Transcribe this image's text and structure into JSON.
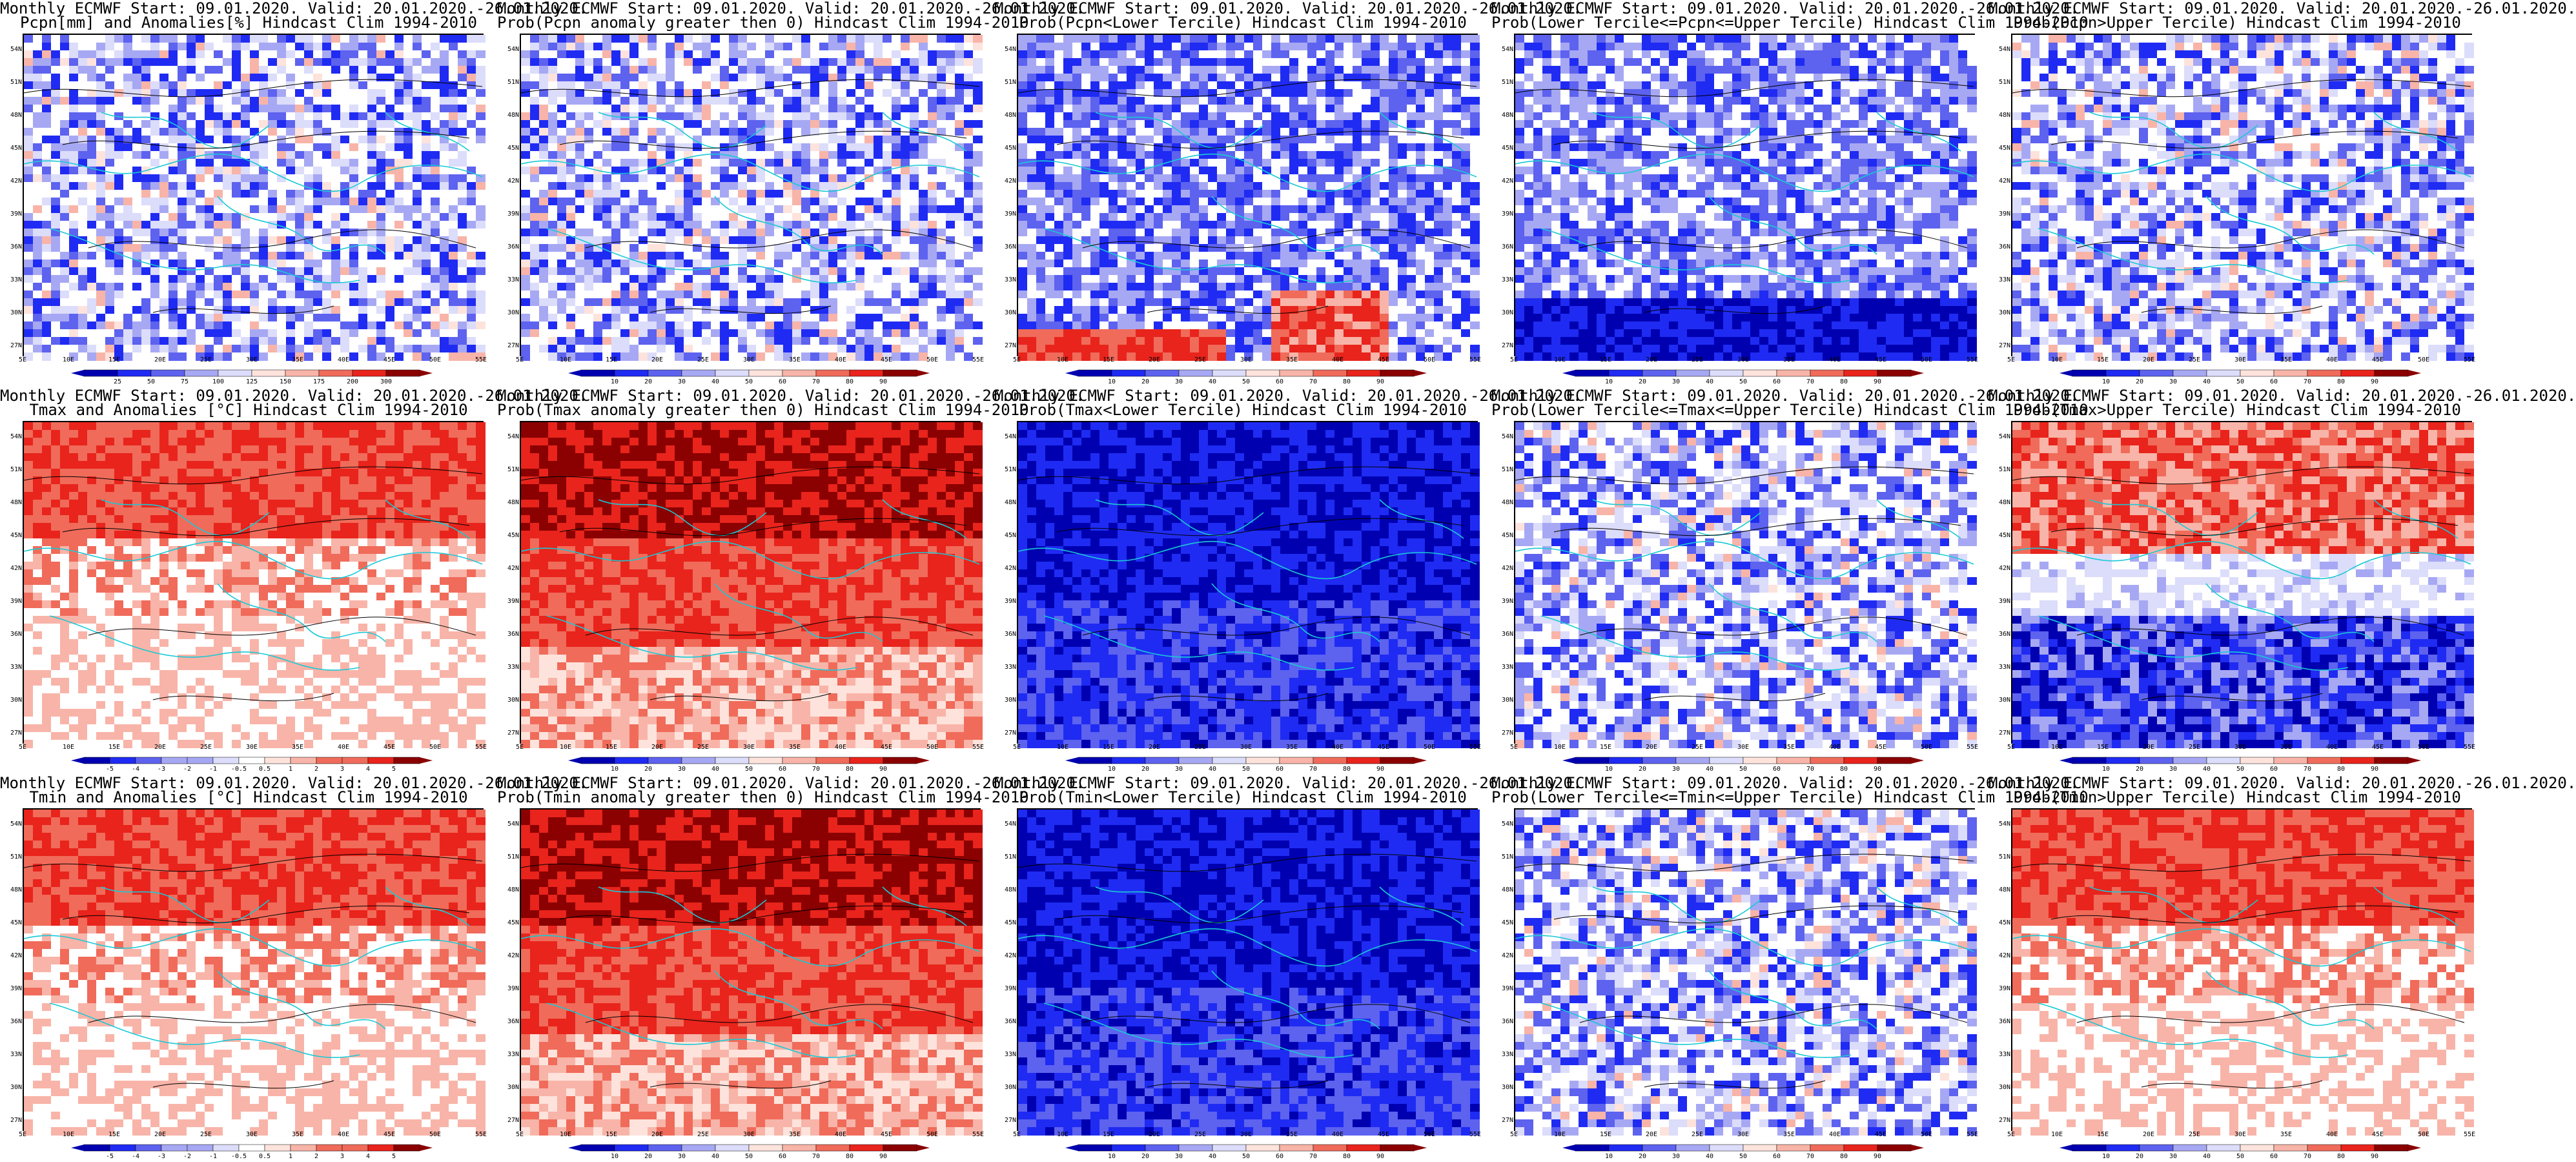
{
  "lat_labels": [
    "54N",
    "51N",
    "48N",
    "45N",
    "42N",
    "39N",
    "36N",
    "33N",
    "30N",
    "27N"
  ],
  "lon_labels": [
    "5E",
    "10E",
    "15E",
    "20E",
    "25E",
    "30E",
    "35E",
    "40E",
    "45E",
    "50E",
    "55E"
  ],
  "colors": {
    "deep_red": "#8b0000",
    "red": "#e8241c",
    "mid_red": "#f06b5a",
    "light_red": "#f8b4a8",
    "pale_red": "#fde3dc",
    "white": "#ffffff",
    "pale_blue": "#dcdcfb",
    "light_blue": "#a7a8f3",
    "mid_blue": "#5d62ef",
    "blue": "#1f2bf2",
    "deep_blue": "#0000b0",
    "coast": "#19c9d6",
    "contour": "#000000"
  },
  "panels": [
    {
      "title1": "Monthly ECMWF Start: 09.01.2020. Valid: 20.01.2020.-26.01.2020.",
      "title2": "Pcpn[mm] and Anomalies[%] Hindcast Clim 1994-2010",
      "ticks": [
        "25",
        "50",
        "75",
        "100",
        "125",
        "150",
        "175",
        "200",
        "300"
      ],
      "scheme": "mixed-blue"
    },
    {
      "title1": "Monthly ECMWF Start: 09.01.2020. Valid: 20.01.2020.-26.01.2020.",
      "title2": "Prob(Pcpn anomaly greater then 0) Hindcast Clim 1994-2010",
      "ticks": [
        "10",
        "20",
        "30",
        "40",
        "50",
        "60",
        "70",
        "80",
        "90"
      ],
      "scheme": "mixed-blue"
    },
    {
      "title1": "Monthly ECMWF Start: 09.01.2020. Valid: 20.01.2020.-26.01.2020.",
      "title2": "Prob(Pcpn<Lower Tercile) Hindcast Clim 1994-2010",
      "ticks": [
        "10",
        "20",
        "30",
        "40",
        "50",
        "60",
        "70",
        "80",
        "90"
      ],
      "scheme": "blue-red-south"
    },
    {
      "title1": "Monthly ECMWF Start: 09.01.2020. Valid: 20.01.2020.-26.01.2020.",
      "title2": "Prob(Lower Tercile<=Pcpn<=Upper Tercile) Hindcast Clim 1994-2010",
      "ticks": [
        "10",
        "20",
        "30",
        "40",
        "50",
        "60",
        "70",
        "80",
        "90"
      ],
      "scheme": "blue-deep-south"
    },
    {
      "title1": "Monthly ECMWF Start: 09.01.2020. Valid: 20.01.2020.-26.01.2020.",
      "title2": "Prob(Pcpn>Upper Tercile) Hindcast Clim 1994-2010",
      "ticks": [
        "10",
        "20",
        "30",
        "40",
        "50",
        "60",
        "70",
        "80",
        "90"
      ],
      "scheme": "mixed-blue"
    },
    {
      "title1": "Monthly ECMWF Start: 09.01.2020. Valid: 20.01.2020.-26.01.2020.",
      "title2": "Tmax and Anomalies [°C] Hindcast Clim 1994-2010",
      "ticks": [
        "-5",
        "-4",
        "-3",
        "-2",
        "-1",
        "-0.5",
        "0.5",
        "1",
        "2",
        "3",
        "4",
        "5"
      ],
      "scheme": "red-north"
    },
    {
      "title1": "Monthly ECMWF Start: 09.01.2020. Valid: 20.01.2020.-26.01.2020.",
      "title2": "Prob(Tmax anomaly greater then 0) Hindcast Clim 1994-2010",
      "ticks": [
        "10",
        "20",
        "30",
        "40",
        "50",
        "60",
        "70",
        "80",
        "90"
      ],
      "scheme": "red-strong"
    },
    {
      "title1": "Monthly ECMWF Start: 09.01.2020. Valid: 20.01.2020.-26.01.2020.",
      "title2": "Prob(Tmax<Lower Tercile) Hindcast Clim 1994-2010",
      "ticks": [
        "10",
        "20",
        "30",
        "40",
        "50",
        "60",
        "70",
        "80",
        "90"
      ],
      "scheme": "blue-full"
    },
    {
      "title1": "Monthly ECMWF Start: 09.01.2020. Valid: 20.01.2020.-26.01.2020.",
      "title2": "Prob(Lower Tercile<=Tmax<=Upper Tercile) Hindcast Clim 1994-2010",
      "ticks": [
        "10",
        "20",
        "30",
        "40",
        "50",
        "60",
        "70",
        "80",
        "90"
      ],
      "scheme": "mixed-blue"
    },
    {
      "title1": "Monthly ECMWF Start: 09.01.2020. Valid: 20.01.2020.-26.01.2020.",
      "title2": "Prob(Tmax>Upper Tercile) Hindcast Clim 1994-2010",
      "ticks": [
        "10",
        "20",
        "30",
        "40",
        "50",
        "60",
        "70",
        "80",
        "90"
      ],
      "scheme": "red-north-blue-south"
    },
    {
      "title1": "Monthly ECMWF Start: 09.01.2020. Valid: 20.01.2020.-26.01.2020.",
      "title2": "Tmin and Anomalies [°C] Hindcast Clim 1994-2010",
      "ticks": [
        "-5",
        "-4",
        "-3",
        "-2",
        "-1",
        "-0.5",
        "0.5",
        "1",
        "2",
        "3",
        "4",
        "5"
      ],
      "scheme": "red-north"
    },
    {
      "title1": "Monthly ECMWF Start: 09.01.2020. Valid: 20.01.2020.-26.01.2020.",
      "title2": "Prob(Tmin anomaly greater then 0) Hindcast Clim 1994-2010",
      "ticks": [
        "10",
        "20",
        "30",
        "40",
        "50",
        "60",
        "70",
        "80",
        "90"
      ],
      "scheme": "red-strong"
    },
    {
      "title1": "Monthly ECMWF Start: 09.01.2020. Valid: 20.01.2020.-26.01.2020.",
      "title2": "Prob(Tmin<Lower Tercile) Hindcast Clim 1994-2010",
      "ticks": [
        "10",
        "20",
        "30",
        "40",
        "50",
        "60",
        "70",
        "80",
        "90"
      ],
      "scheme": "blue-full"
    },
    {
      "title1": "Monthly ECMWF Start: 09.01.2020. Valid: 20.01.2020.-26.01.2020.",
      "title2": "Prob(Lower Tercile<=Tmin<=Upper Tercile) Hindcast Clim 1994-2010",
      "ticks": [
        "10",
        "20",
        "30",
        "40",
        "50",
        "60",
        "70",
        "80",
        "90"
      ],
      "scheme": "mixed-blue"
    },
    {
      "title1": "Monthly ECMWF Start: 09.01.2020. Valid: 20.01.2020.-26.01.2020.",
      "title2": "Prob(Tmin>Upper Tercile) Hindcast Clim 1994-2010",
      "ticks": [
        "10",
        "20",
        "30",
        "40",
        "50",
        "60",
        "70",
        "80",
        "90"
      ],
      "scheme": "red-north"
    }
  ]
}
